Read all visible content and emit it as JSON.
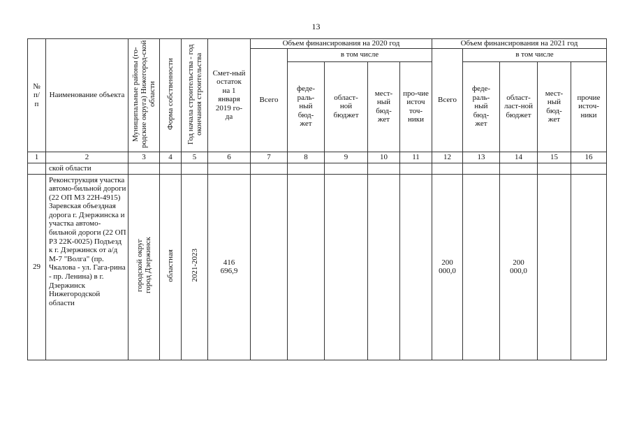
{
  "page_number": "13",
  "header": {
    "col1": "№ п/ п",
    "col2": "Наименование объекта",
    "col3": "Муниципальные районы (го-родские округа) Нижегород-ской области",
    "col4": "Форма собственности",
    "col5": "Год начала строительства - год окончания строительства",
    "col6": "Смет-ный остаток на 1 января 2019 го-да",
    "group2020": "Объем финансирования на 2020 год",
    "group2021": "Объем финансирования на 2021 год",
    "incl": "в том числе",
    "total": "Всего",
    "fed_2020": "феде-раль-ный бюд-жет",
    "obl_2020": "област-ной бюджет",
    "loc_2020": "мест-ный бюд-жет",
    "oth_2020": "про-чие источ точ-ники",
    "fed_2021": "феде-раль-ный бюд-жет",
    "obl_2021": "област-ласт-ной бюджет",
    "loc_2021": "мест-ный бюд-жет",
    "oth_2021": "прочие источ-ники"
  },
  "column_numbers": [
    "1",
    "2",
    "3",
    "4",
    "5",
    "6",
    "7",
    "8",
    "9",
    "10",
    "11",
    "12",
    "13",
    "14",
    "15",
    "16"
  ],
  "continuation_row": {
    "name": "ской области"
  },
  "rows": [
    {
      "num": "29",
      "name": "Реконструкция участка автомо-бильной дороги (22 ОП МЗ 22Н-4915) Заревская объездная дорога г. Дзержинска и участка автомо-бильной дороги (22 ОП РЗ 22К-0025) Подъезд к г. Дзержинск от а/д М-7 \"Волга\" (пр. Чкалова - ул. Гага-рина - пр. Ленина) в г. Дзержинск Нижегородской области",
      "district": "городской округ город Дзержинск",
      "ownership": "областная",
      "years": "2021-2023",
      "remainder": "416 696,9",
      "total_2021": "200 000,0",
      "obl_2021": "200 000,0"
    }
  ]
}
